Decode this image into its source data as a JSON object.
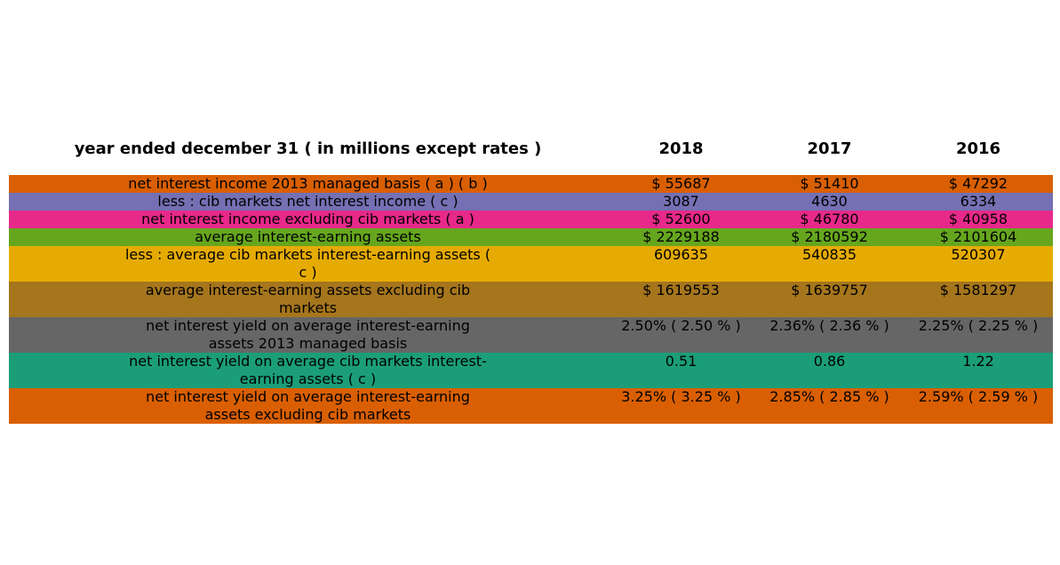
{
  "table": {
    "headers": [
      "year ended december 31 ( in millions except rates )",
      "2018",
      "2017",
      "2016"
    ],
    "rows": [
      {
        "label": "net interest income 2013 managed basis ( a ) ( b )",
        "values": [
          "$ 55687",
          "$ 51410",
          "$ 47292"
        ],
        "color": "#d95f02"
      },
      {
        "label": "less : cib markets net interest income ( c )",
        "values": [
          "3087",
          "4630",
          "6334"
        ],
        "color": "#7570b3"
      },
      {
        "label": "net interest income excluding cib markets ( a )",
        "values": [
          "$ 52600",
          "$ 46780",
          "$ 40958"
        ],
        "color": "#e7298a"
      },
      {
        "label": "average interest-earning assets",
        "values": [
          "$ 2229188",
          "$ 2180592",
          "$ 2101604"
        ],
        "color": "#66a61e"
      },
      {
        "label": "less : average cib markets interest-earning assets ( c )",
        "values": [
          "609635",
          "540835",
          "520307"
        ],
        "color": "#e6ab02"
      },
      {
        "label": "average interest-earning assets excluding cib markets",
        "values": [
          "$ 1619553",
          "$ 1639757",
          "$ 1581297"
        ],
        "color": "#a6761d"
      },
      {
        "label": "net interest yield on average interest-earning assets 2013 managed basis",
        "values": [
          "2.50% ( 2.50 % )",
          "2.36% ( 2.36 % )",
          "2.25% ( 2.25 % )"
        ],
        "color": "#666666"
      },
      {
        "label": "net interest yield on average cib markets interest-earning assets ( c )",
        "values": [
          "0.51",
          "0.86",
          "1.22"
        ],
        "color": "#1b9e77"
      },
      {
        "label": "net interest yield on average interest-earning assets excluding cib markets",
        "values": [
          "3.25% ( 3.25 % )",
          "2.85% ( 2.85 % )",
          "2.59% ( 2.59 % )"
        ],
        "color": "#d95f02"
      }
    ]
  }
}
